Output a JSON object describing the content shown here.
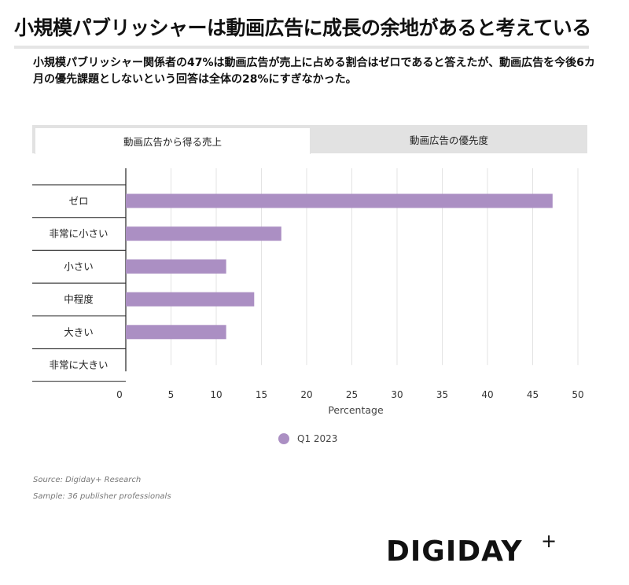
{
  "title": "小規模パブリッシャーは動画広告に成長の余地があると考えている",
  "subtitle": "小規模パブリッシャー関係者の47%は動画広告が売上に占める割合はゼロであると答えたが、動画広告を今後6カ月の優先課題としないという回答は全体の28%にすぎなかった。",
  "tabs": [
    {
      "label": "動画広告から得る売上",
      "active": true
    },
    {
      "label": "動画広告の優先度",
      "active": false
    }
  ],
  "chart_data": {
    "type": "bar",
    "orientation": "horizontal",
    "categories": [
      "ゼロ",
      "非常に小さい",
      "小さい",
      "中程度",
      "大きい",
      "非常に大きい"
    ],
    "series": [
      {
        "name": "Q1 2023",
        "values": [
          47.2,
          17.2,
          11.1,
          14.2,
          11.1,
          0
        ],
        "color": "#ab8fc3"
      }
    ],
    "xlabel": "Percentage",
    "xlim": [
      0,
      50
    ],
    "xticks": [
      0,
      5,
      10,
      15,
      20,
      25,
      30,
      35,
      40,
      45,
      50
    ],
    "grid": true,
    "legend_position": "bottom"
  },
  "legend": {
    "label": "Q1 2023",
    "color": "#ab8fc3"
  },
  "source": {
    "line1": "Source: Digiday+ Research",
    "line2": "Sample: 36 publisher professionals"
  },
  "logo": {
    "text": "DIGIDAY",
    "plus": "+"
  }
}
